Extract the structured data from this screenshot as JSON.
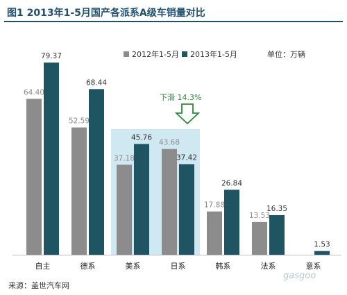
{
  "title": "图1    2013年1-5月国产各派系A级车销量对比",
  "unit_label": "单位：万辆",
  "source": "来源：盖世汽车网",
  "watermark": "gasgoo",
  "annotation": {
    "text": "下滑 14.3%"
  },
  "colors": {
    "series_2012": "#8c8c8c",
    "series_2013": "#1f5562",
    "highlight": "#cfe8f2",
    "annotation": "#2a8a3a"
  },
  "chart_data": {
    "type": "bar",
    "categories": [
      "自主",
      "德系",
      "美系",
      "日系",
      "韩系",
      "法系",
      "意系"
    ],
    "series": [
      {
        "name": "2012年1-5月",
        "values": [
          64.4,
          52.59,
          37.18,
          43.68,
          17.88,
          13.53,
          null
        ]
      },
      {
        "name": "2013年1-5月",
        "values": [
          79.37,
          68.44,
          45.76,
          37.42,
          26.84,
          16.35,
          1.53
        ]
      }
    ],
    "value_labels": [
      [
        "64.40",
        "52.59",
        "37.18",
        "43.68",
        "17.88",
        "13.53",
        ""
      ],
      [
        "79.37",
        "68.44",
        "45.76",
        "37.42",
        "26.84",
        "16.35",
        "1.53"
      ]
    ],
    "highlighted_categories": [
      "美系",
      "日系"
    ],
    "legend_position": "top-center",
    "grid": false
  }
}
